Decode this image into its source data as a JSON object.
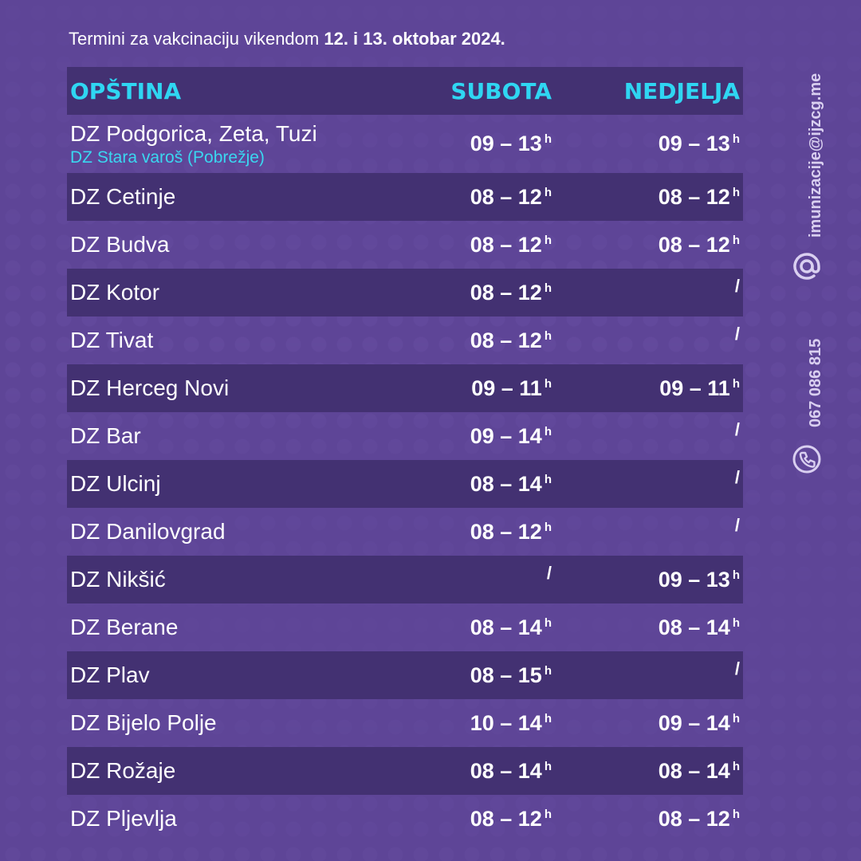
{
  "header": {
    "title_prefix": "Termini za vakcinaciju vikendom ",
    "title_bold": "12. i 13. oktobar 2024."
  },
  "table": {
    "columns": [
      "OPŠTINA",
      "SUBOTA",
      "NEDJELJA"
    ],
    "hour_suffix": "h",
    "rows": [
      {
        "name": "DZ Podgorica, Zeta, Tuzi",
        "sub": "DZ Stara varoš (Pobrežje)",
        "sat": "09 – 13",
        "sun": "09 – 13"
      },
      {
        "name": "DZ Cetinje",
        "sat": "08 – 12",
        "sun": "08 – 12"
      },
      {
        "name": "DZ Budva",
        "sat": "08 – 12",
        "sun": "08 – 12"
      },
      {
        "name": "DZ Kotor",
        "sat": "08 – 12",
        "sun": "/"
      },
      {
        "name": "DZ Tivat",
        "sat": "08 – 12",
        "sun": "/"
      },
      {
        "name": "DZ Herceg Novi",
        "sat": "09 – 11",
        "sun": "09 – 11"
      },
      {
        "name": "DZ Bar",
        "sat": "09 – 14",
        "sun": "/"
      },
      {
        "name": "DZ Ulcinj",
        "sat": "08 – 14",
        "sun": "/"
      },
      {
        "name": "DZ Danilovgrad",
        "sat": "08 – 12",
        "sun": "/"
      },
      {
        "name": "DZ Nikšić",
        "sat": "/",
        "sun": "09 – 13"
      },
      {
        "name": "DZ Berane",
        "sat": "08 – 14",
        "sun": "08 – 14"
      },
      {
        "name": "DZ Plav",
        "sat": "08 – 15",
        "sun": "/"
      },
      {
        "name": "DZ Bijelo Polje",
        "sat": "10 – 14",
        "sun": "09 – 14"
      },
      {
        "name": "DZ Rožaje",
        "sat": "08 – 14",
        "sun": "08 – 14"
      },
      {
        "name": "DZ Pljevlja",
        "sat": "08 – 12",
        "sun": "08 – 12"
      }
    ]
  },
  "contact": {
    "email": "imunizacije@ijzcg.me",
    "phone": "067 086 815",
    "email_icon": "at-icon",
    "phone_icon": "phone-icon"
  },
  "colors": {
    "background": "#5e4597",
    "row_dark": "#433172",
    "accent": "#2fd6f2"
  }
}
